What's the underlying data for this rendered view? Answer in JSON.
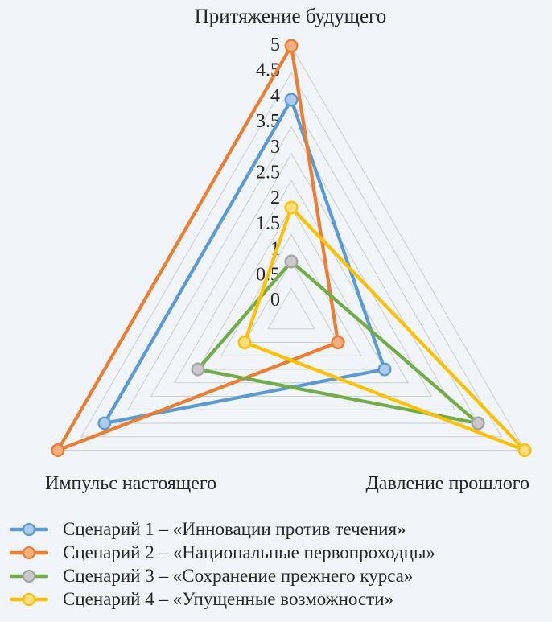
{
  "page": {
    "background": "#F1F4F8"
  },
  "chart_data": {
    "type": "radar",
    "axes": [
      {
        "label": "Притяжение будущего",
        "position": "top"
      },
      {
        "label": "Давление прошлого",
        "position": "bottom-right"
      },
      {
        "label": "Импульс настоящего",
        "position": "bottom-left"
      }
    ],
    "scale": {
      "min": 0,
      "max": 5,
      "step": 0.5,
      "ticks": [
        "0",
        "0.5",
        "1",
        "1.5",
        "2",
        "2.5",
        "3",
        "3.5",
        "4",
        "4.5",
        "5"
      ]
    },
    "series": [
      {
        "name": "Сценарий 1 – «Инновации против течения»",
        "values": [
          4,
          2,
          4
        ],
        "line_color": "#5B9BD5",
        "marker_fill": "#AECBEA",
        "marker_stroke": "#5B9BD5"
      },
      {
        "name": "Сценарий 2 – «Национальные первопроходцы»",
        "values": [
          5,
          1,
          5
        ],
        "line_color": "#ED7D31",
        "marker_fill": "#F4AE80",
        "marker_stroke": "#ED7D31"
      },
      {
        "name": "Сценарий 3 – «Сохранение прежнего курса»",
        "values": [
          1,
          4,
          2
        ],
        "line_color": "#70AD47",
        "marker_fill": "#C9C9C9",
        "marker_stroke": "#A5A5A5"
      },
      {
        "name": "Сценарий 4 – «Упущенные возможности»",
        "values": [
          2,
          5,
          1
        ],
        "line_color": "#FFC000",
        "marker_fill": "#FFDE7F",
        "marker_stroke": "#FFC000"
      }
    ],
    "style": {
      "gridline_color": "#CDCDCD",
      "text_color": "#262626"
    },
    "legend_position": "bottom-left"
  }
}
